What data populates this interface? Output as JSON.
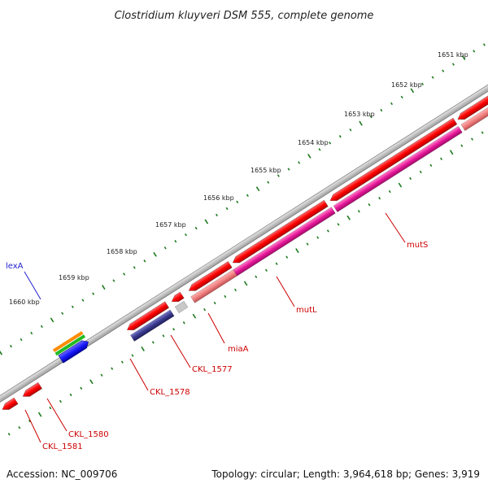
{
  "title": "Clostridium kluyveri DSM 555, complete genome",
  "footer": {
    "accession": "Accession: NC_009706",
    "summary": "Topology: circular; Length: 3,964,618 bp; Genes: 3,919"
  },
  "ticks": [
    {
      "label": "1651 kbp"
    },
    {
      "label": "1652 kbp"
    },
    {
      "label": "1653 kbp"
    },
    {
      "label": "1654 kbp"
    },
    {
      "label": "1655 kbp"
    },
    {
      "label": "1656 kbp"
    },
    {
      "label": "1657 kbp"
    },
    {
      "label": "1658 kbp"
    },
    {
      "label": "1659 kbp"
    },
    {
      "label": "1660 kbp"
    }
  ],
  "gene_labels": [
    {
      "name": "lexA",
      "color": "#2222cc"
    },
    {
      "name": "mutS",
      "color": "#cc0000"
    },
    {
      "name": "mutL",
      "color": "#cc0000"
    },
    {
      "name": "miaA",
      "color": "#cc0000"
    },
    {
      "name": "CKL_1577",
      "color": "#cc0000"
    },
    {
      "name": "CKL_1578",
      "color": "#cc0000"
    },
    {
      "name": "CKL_1580",
      "color": "#cc0000"
    },
    {
      "name": "CKL_1581",
      "color": "#cc0000"
    }
  ],
  "colors": {
    "backbone": "#808080",
    "cds": "#ff1a1a",
    "mutS_mutL_feature": "#e8189a",
    "miaA_feature": "#f08080",
    "CKL_1578_feature": "#3b3b8f",
    "lexA_feature": "#1a1aff",
    "tick": "#1e7a1e"
  }
}
